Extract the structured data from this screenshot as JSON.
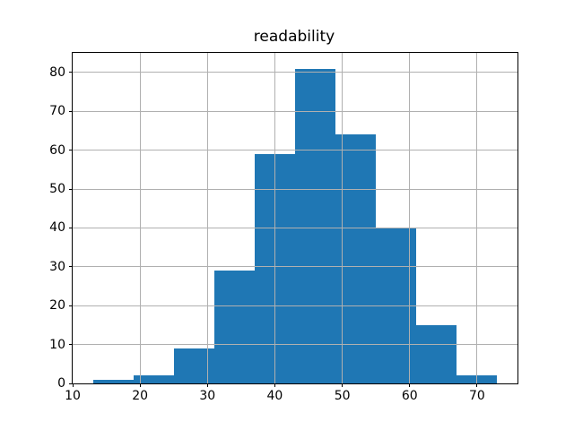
{
  "figure": {
    "background": "#ffffff"
  },
  "chart_data": {
    "type": "bar",
    "subtype": "histogram",
    "title": "readability",
    "xlabel": "",
    "ylabel": "",
    "bin_edges": [
      13,
      19,
      25,
      31,
      37,
      43,
      49,
      55,
      61,
      67,
      73
    ],
    "counts": [
      1,
      2,
      9,
      29,
      59,
      81,
      64,
      40,
      15,
      2
    ],
    "xticks": [
      10,
      20,
      30,
      40,
      50,
      60,
      70
    ],
    "yticks": [
      0,
      10,
      20,
      30,
      40,
      50,
      60,
      70,
      80
    ],
    "xlim": [
      10,
      76
    ],
    "ylim": [
      0,
      85.05
    ],
    "grid": true,
    "grid_above_bars": true,
    "bar_color": "#1f77b4",
    "grid_color": "#b0b0b0",
    "spine_color": "#000000",
    "text_color": "#000000",
    "legend": null
  }
}
